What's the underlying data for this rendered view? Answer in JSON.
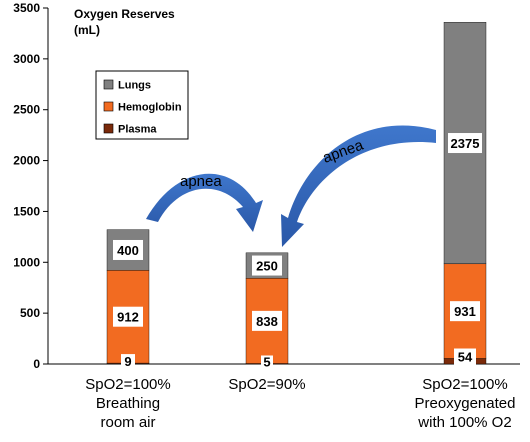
{
  "chart_data": {
    "type": "bar",
    "stacked": true,
    "title": "Oxygen Reserves",
    "title_unit": "(mL)",
    "ylim": [
      0,
      3500
    ],
    "y_ticks": [
      "0",
      "500",
      "1000",
      "1500",
      "2000",
      "2500",
      "3000",
      "3500"
    ],
    "grid": false,
    "legend_position": "upper-left",
    "categories": [
      [
        "SpO2=100%",
        "Breathing",
        "room air"
      ],
      [
        "SpO2=90%"
      ],
      [
        "SpO2=100%",
        "Preoxygenated",
        "with 100% O2"
      ]
    ],
    "series": [
      {
        "name": "Plasma",
        "color": "#7a2a0a",
        "values": [
          9,
          5,
          54
        ]
      },
      {
        "name": "Hemoglobin",
        "color": "#f26b21",
        "values": [
          912,
          838,
          931
        ]
      },
      {
        "name": "Lungs",
        "color": "#808080",
        "values": [
          400,
          250,
          2375
        ]
      }
    ],
    "data_labels": [
      [
        "9",
        "912",
        "400"
      ],
      [
        "5",
        "838",
        "250"
      ],
      [
        "54",
        "931",
        "2375"
      ]
    ],
    "annotations": [
      "apnea",
      "apnea"
    ]
  }
}
